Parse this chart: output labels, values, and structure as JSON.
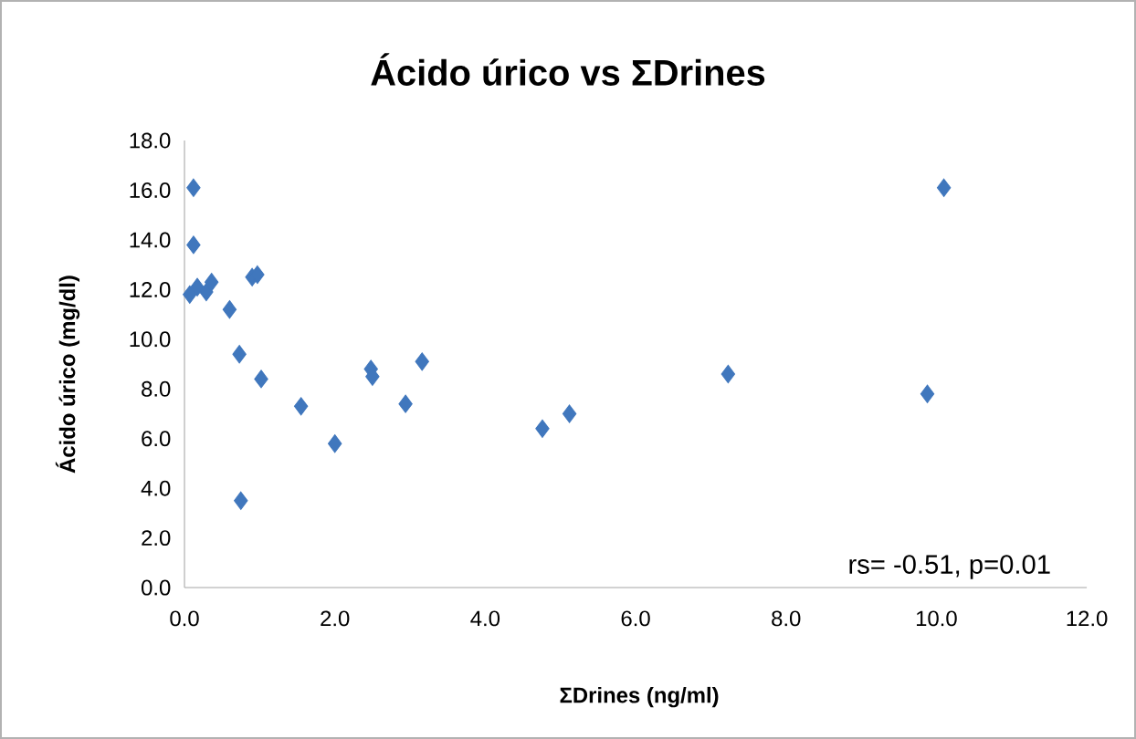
{
  "chart_data": {
    "type": "scatter",
    "title": "Ácido úrico vs ΣDrines",
    "xlabel": "ΣDrines (ng/ml)",
    "ylabel": "Ácido úrico (mg/dl)",
    "annotations": [
      "rs= -0.51, p=0.01"
    ],
    "x": [
      0.12,
      0.12,
      0.07,
      0.17,
      0.29,
      0.36,
      0.6,
      0.73,
      0.9,
      0.97,
      1.02,
      0.75,
      1.55,
      2.0,
      2.48,
      2.5,
      2.94,
      3.16,
      4.76,
      5.12,
      7.23,
      9.88,
      10.1
    ],
    "series": [
      {
        "color": "#4077bd",
        "values": [
          16.1,
          13.8,
          11.8,
          12.1,
          11.9,
          12.3,
          11.2,
          9.4,
          12.5,
          12.6,
          8.4,
          3.5,
          7.3,
          5.8,
          8.8,
          8.5,
          7.4,
          9.1,
          6.4,
          7.0,
          8.6,
          7.8,
          16.1
        ]
      }
    ],
    "marker": "diamond",
    "xlim": [
      0,
      12
    ],
    "ylim": [
      0,
      18
    ],
    "xticks": [
      {
        "value": 0,
        "label": "0.0"
      },
      {
        "value": 2,
        "label": "2.0"
      },
      {
        "value": 4,
        "label": "4.0"
      },
      {
        "value": 6,
        "label": "6.0"
      },
      {
        "value": 8,
        "label": "8.0"
      },
      {
        "value": 10,
        "label": "10.0"
      },
      {
        "value": 12,
        "label": "12.0"
      }
    ],
    "yticks": [
      {
        "value": 0,
        "label": "0.0"
      },
      {
        "value": 2,
        "label": "2.0"
      },
      {
        "value": 4,
        "label": "4.0"
      },
      {
        "value": 6,
        "label": "6.0"
      },
      {
        "value": 8,
        "label": "8.0"
      },
      {
        "value": 10,
        "label": "10.0"
      },
      {
        "value": 12,
        "label": "12.0"
      },
      {
        "value": 14,
        "label": "14.0"
      },
      {
        "value": 16,
        "label": "16.0"
      },
      {
        "value": 18,
        "label": "18.0"
      }
    ]
  }
}
